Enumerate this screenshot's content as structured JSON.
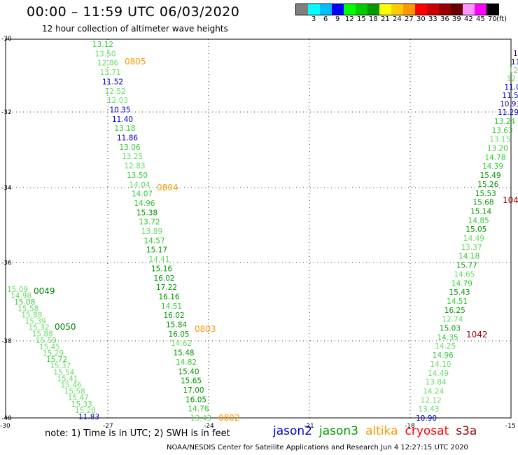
{
  "header": {
    "title": "00:00 – 11:59 UTC 06/03/2020",
    "subtitle": "12 hour collection of altimeter wave heights"
  },
  "legend": {
    "unit": "(ft)",
    "items": [
      {
        "label": "",
        "color": "#7f7f7f"
      },
      {
        "label": "3",
        "color": "#00ffff"
      },
      {
        "label": "6",
        "color": "#00bfff"
      },
      {
        "label": "9",
        "color": "#0000ff"
      },
      {
        "label": "12",
        "color": "#00ff00"
      },
      {
        "label": "15",
        "color": "#00cc00"
      },
      {
        "label": "18",
        "color": "#009900"
      },
      {
        "label": "21",
        "color": "#ffff00"
      },
      {
        "label": "24",
        "color": "#ffcc00"
      },
      {
        "label": "27",
        "color": "#ff9900"
      },
      {
        "label": "30",
        "color": "#ff0000"
      },
      {
        "label": "33",
        "color": "#cc0000"
      },
      {
        "label": "36",
        "color": "#990000"
      },
      {
        "label": "39",
        "color": "#660000"
      },
      {
        "label": "42",
        "color": "#ff99ff"
      },
      {
        "label": "45",
        "color": "#ff00ff"
      },
      {
        "label": "70",
        "color": "#000000"
      }
    ]
  },
  "map": {
    "lat_ticks": [
      "-30",
      "-32",
      "-34",
      "-36",
      "-38",
      "-40"
    ],
    "lon_ticks": [
      "-30",
      "-27",
      "-24",
      "-21",
      "-18",
      "-15"
    ]
  },
  "track_times": [
    {
      "text": "0805",
      "color": "#ff9900"
    },
    {
      "text": "0804",
      "color": "#ff9900"
    },
    {
      "text": "0803",
      "color": "#ff9900"
    },
    {
      "text": "0802",
      "color": "#ff9900"
    },
    {
      "text": "0049",
      "color": "#008000"
    },
    {
      "text": "0050",
      "color": "#008000"
    },
    {
      "text": "1042",
      "color": "#990000"
    },
    {
      "text": "104",
      "color": "#990000"
    }
  ],
  "tracks": [
    {
      "name": "track-altika-west",
      "points": [
        {
          "v": "13.12",
          "c": "#33cc33"
        },
        {
          "v": "13.50",
          "c": "#66dd66"
        },
        {
          "v": "12.86",
          "c": "#66dd66"
        },
        {
          "v": "13.71",
          "c": "#66dd66"
        },
        {
          "v": "11.52",
          "c": "#0000cc"
        },
        {
          "v": "12.52",
          "c": "#66dd66"
        },
        {
          "v": "12.03",
          "c": "#66dd66"
        },
        {
          "v": "10.35",
          "c": "#0000cc"
        },
        {
          "v": "11.40",
          "c": "#0000cc"
        },
        {
          "v": "13.18",
          "c": "#33cc33"
        },
        {
          "v": "11.86",
          "c": "#0000cc"
        },
        {
          "v": "13.06",
          "c": "#33cc33"
        },
        {
          "v": "13.25",
          "c": "#66dd66"
        },
        {
          "v": "12.83",
          "c": "#66dd66"
        },
        {
          "v": "13.50",
          "c": "#33cc33"
        },
        {
          "v": "14.04",
          "c": "#66dd66"
        },
        {
          "v": "14.07",
          "c": "#33cc33"
        },
        {
          "v": "14.96",
          "c": "#33cc33"
        },
        {
          "v": "15.38",
          "c": "#009900"
        },
        {
          "v": "13.72",
          "c": "#33cc33"
        },
        {
          "v": "13.89",
          "c": "#66dd66"
        },
        {
          "v": "14.57",
          "c": "#33cc33"
        },
        {
          "v": "15.17",
          "c": "#009900"
        },
        {
          "v": "14.41",
          "c": "#66dd66"
        },
        {
          "v": "15.16",
          "c": "#009900"
        },
        {
          "v": "16.02",
          "c": "#009900"
        },
        {
          "v": "17.22",
          "c": "#009900"
        },
        {
          "v": "16.16",
          "c": "#009900"
        },
        {
          "v": "14.51",
          "c": "#33cc33"
        },
        {
          "v": "16.02",
          "c": "#009900"
        },
        {
          "v": "15.84",
          "c": "#009900"
        },
        {
          "v": "16.05",
          "c": "#009900"
        },
        {
          "v": "14.62",
          "c": "#66dd66"
        },
        {
          "v": "15.48",
          "c": "#009900"
        },
        {
          "v": "14.82",
          "c": "#33cc33"
        },
        {
          "v": "15.40",
          "c": "#009900"
        },
        {
          "v": "15.65",
          "c": "#009900"
        },
        {
          "v": "17.00",
          "c": "#009900"
        },
        {
          "v": "16.05",
          "c": "#009900"
        },
        {
          "v": "14.76",
          "c": "#33cc33"
        },
        {
          "v": "13.43",
          "c": "#66dd66"
        }
      ]
    },
    {
      "name": "track-jason3-sw",
      "points": [
        {
          "v": "15.09",
          "c": "#66dd66"
        },
        {
          "v": "14.98",
          "c": "#66dd66"
        },
        {
          "v": "15.08",
          "c": "#33cc33"
        },
        {
          "v": "15.58",
          "c": "#66dd66"
        },
        {
          "v": "15.88",
          "c": "#66dd66"
        },
        {
          "v": "15.39",
          "c": "#66dd66"
        },
        {
          "v": "15.32",
          "c": "#66dd66"
        },
        {
          "v": "15.88",
          "c": "#66dd66"
        },
        {
          "v": "15.59",
          "c": "#66dd66"
        },
        {
          "v": "15.45",
          "c": "#66dd66"
        },
        {
          "v": "15.29",
          "c": "#66dd66"
        },
        {
          "v": "15.72",
          "c": "#33cc33"
        },
        {
          "v": "15.37",
          "c": "#66dd66"
        },
        {
          "v": "15.54",
          "c": "#66dd66"
        },
        {
          "v": "15.41",
          "c": "#66dd66"
        },
        {
          "v": "15.46",
          "c": "#66dd66"
        },
        {
          "v": "15.58",
          "c": "#66dd66"
        },
        {
          "v": "15.47",
          "c": "#66dd66"
        },
        {
          "v": "15.33",
          "c": "#66dd66"
        },
        {
          "v": "15.28",
          "c": "#66dd66"
        },
        {
          "v": "11.83",
          "c": "#0000cc"
        }
      ]
    },
    {
      "name": "track-jason3-east",
      "points": [
        {
          "v": "10.90",
          "c": "#0000cc"
        },
        {
          "v": "13.43",
          "c": "#66dd66"
        },
        {
          "v": "12.12",
          "c": "#66dd66"
        },
        {
          "v": "14.24",
          "c": "#66dd66"
        },
        {
          "v": "13.84",
          "c": "#66dd66"
        },
        {
          "v": "14.49",
          "c": "#66dd66"
        },
        {
          "v": "14.10",
          "c": "#66dd66"
        },
        {
          "v": "14.96",
          "c": "#33cc33"
        },
        {
          "v": "14.25",
          "c": "#66dd66"
        },
        {
          "v": "14.35",
          "c": "#33cc33"
        },
        {
          "v": "15.03",
          "c": "#009900"
        },
        {
          "v": "12.74",
          "c": "#66dd66"
        },
        {
          "v": "16.25",
          "c": "#009900"
        },
        {
          "v": "14.51",
          "c": "#33cc33"
        },
        {
          "v": "15.43",
          "c": "#009900"
        },
        {
          "v": "14.79",
          "c": "#33cc33"
        },
        {
          "v": "14.65",
          "c": "#66dd66"
        },
        {
          "v": "15.77",
          "c": "#009900"
        },
        {
          "v": "14.18",
          "c": "#33cc33"
        },
        {
          "v": "13.37",
          "c": "#66dd66"
        },
        {
          "v": "14.49",
          "c": "#66dd66"
        },
        {
          "v": "15.05",
          "c": "#009900"
        },
        {
          "v": "14.85",
          "c": "#33cc33"
        },
        {
          "v": "15.14",
          "c": "#009900"
        },
        {
          "v": "15.68",
          "c": "#009900"
        },
        {
          "v": "15.53",
          "c": "#009900"
        },
        {
          "v": "15.26",
          "c": "#009900"
        },
        {
          "v": "15.49",
          "c": "#009900"
        },
        {
          "v": "14.39",
          "c": "#33cc33"
        },
        {
          "v": "14.78",
          "c": "#33cc33"
        },
        {
          "v": "13.20",
          "c": "#33cc33"
        },
        {
          "v": "13.15",
          "c": "#66dd66"
        },
        {
          "v": "13.63",
          "c": "#33cc33"
        },
        {
          "v": "13.24",
          "c": "#33cc33"
        }
      ]
    },
    {
      "name": "track-jason2-east-edge",
      "points": [
        {
          "v": "11.29",
          "c": "#0000cc"
        },
        {
          "v": "10.93",
          "c": "#0000cc"
        },
        {
          "v": "11.5",
          "c": "#0000cc"
        },
        {
          "v": "11.0",
          "c": "#0000cc"
        },
        {
          "v": "12.",
          "c": "#66dd66"
        },
        {
          "v": "12",
          "c": "#66dd66"
        },
        {
          "v": "11",
          "c": "#0000cc"
        },
        {
          "v": "1",
          "c": "#0000cc"
        }
      ]
    }
  ],
  "satellites": [
    {
      "label": "jason2",
      "color": "#0000cc"
    },
    {
      "label": "jason3",
      "color": "#009900"
    },
    {
      "label": "altika",
      "color": "#ff9900"
    },
    {
      "label": "cryosat",
      "color": "#ff0000"
    },
    {
      "label": "s3a",
      "color": "#990000"
    }
  ],
  "footer": {
    "note": "note:  1) Time is in UTC;  2) SWH is in feet",
    "credit": "NOAA/NESDIS Center for Satellite Applications and Research     Jun  4 12:27:15 UTC 2020"
  }
}
